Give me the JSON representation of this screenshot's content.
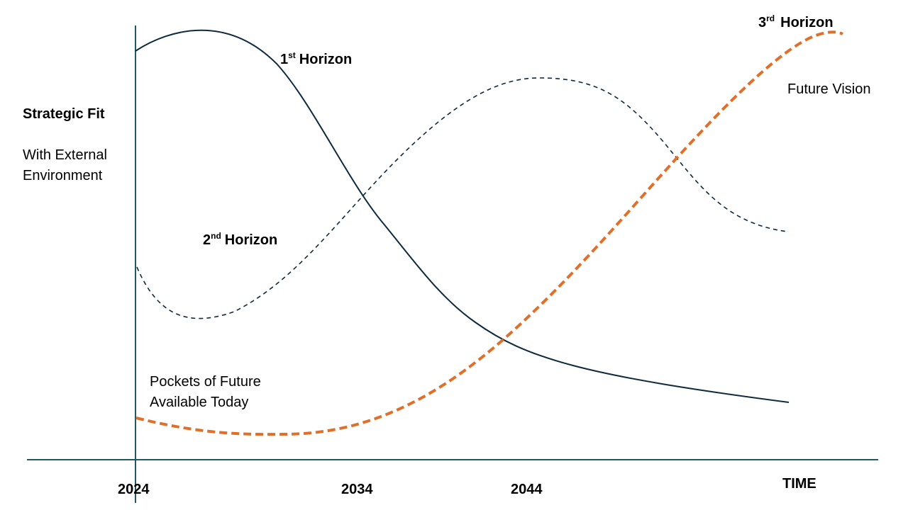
{
  "diagram": {
    "colors": {
      "axis": "#215868",
      "horizon1": "#0f2a3d",
      "horizon2": "#0f2a3d",
      "horizon3": "#e06f2a",
      "text": "#000000"
    },
    "y_axis_labels": {
      "title": "Strategic Fit",
      "line1": "With External",
      "line2": "Environment"
    },
    "x_axis": {
      "ticks": [
        "2024",
        "2034",
        "2044"
      ],
      "label": "TIME"
    },
    "curves": {
      "horizon1": {
        "number": "1",
        "suffix": "st",
        "text": "Horizon",
        "style": "solid"
      },
      "horizon2": {
        "number": "2",
        "suffix": "nd",
        "text": "Horizon",
        "style": "dashed"
      },
      "horizon3": {
        "number": "3",
        "suffix": "rd",
        "text": "Horizon",
        "style": "dashed-thick"
      }
    },
    "annotations": {
      "future_vision": "Future Vision",
      "pockets_line1": "Pockets of Future",
      "pockets_line2": "Available Today"
    }
  }
}
